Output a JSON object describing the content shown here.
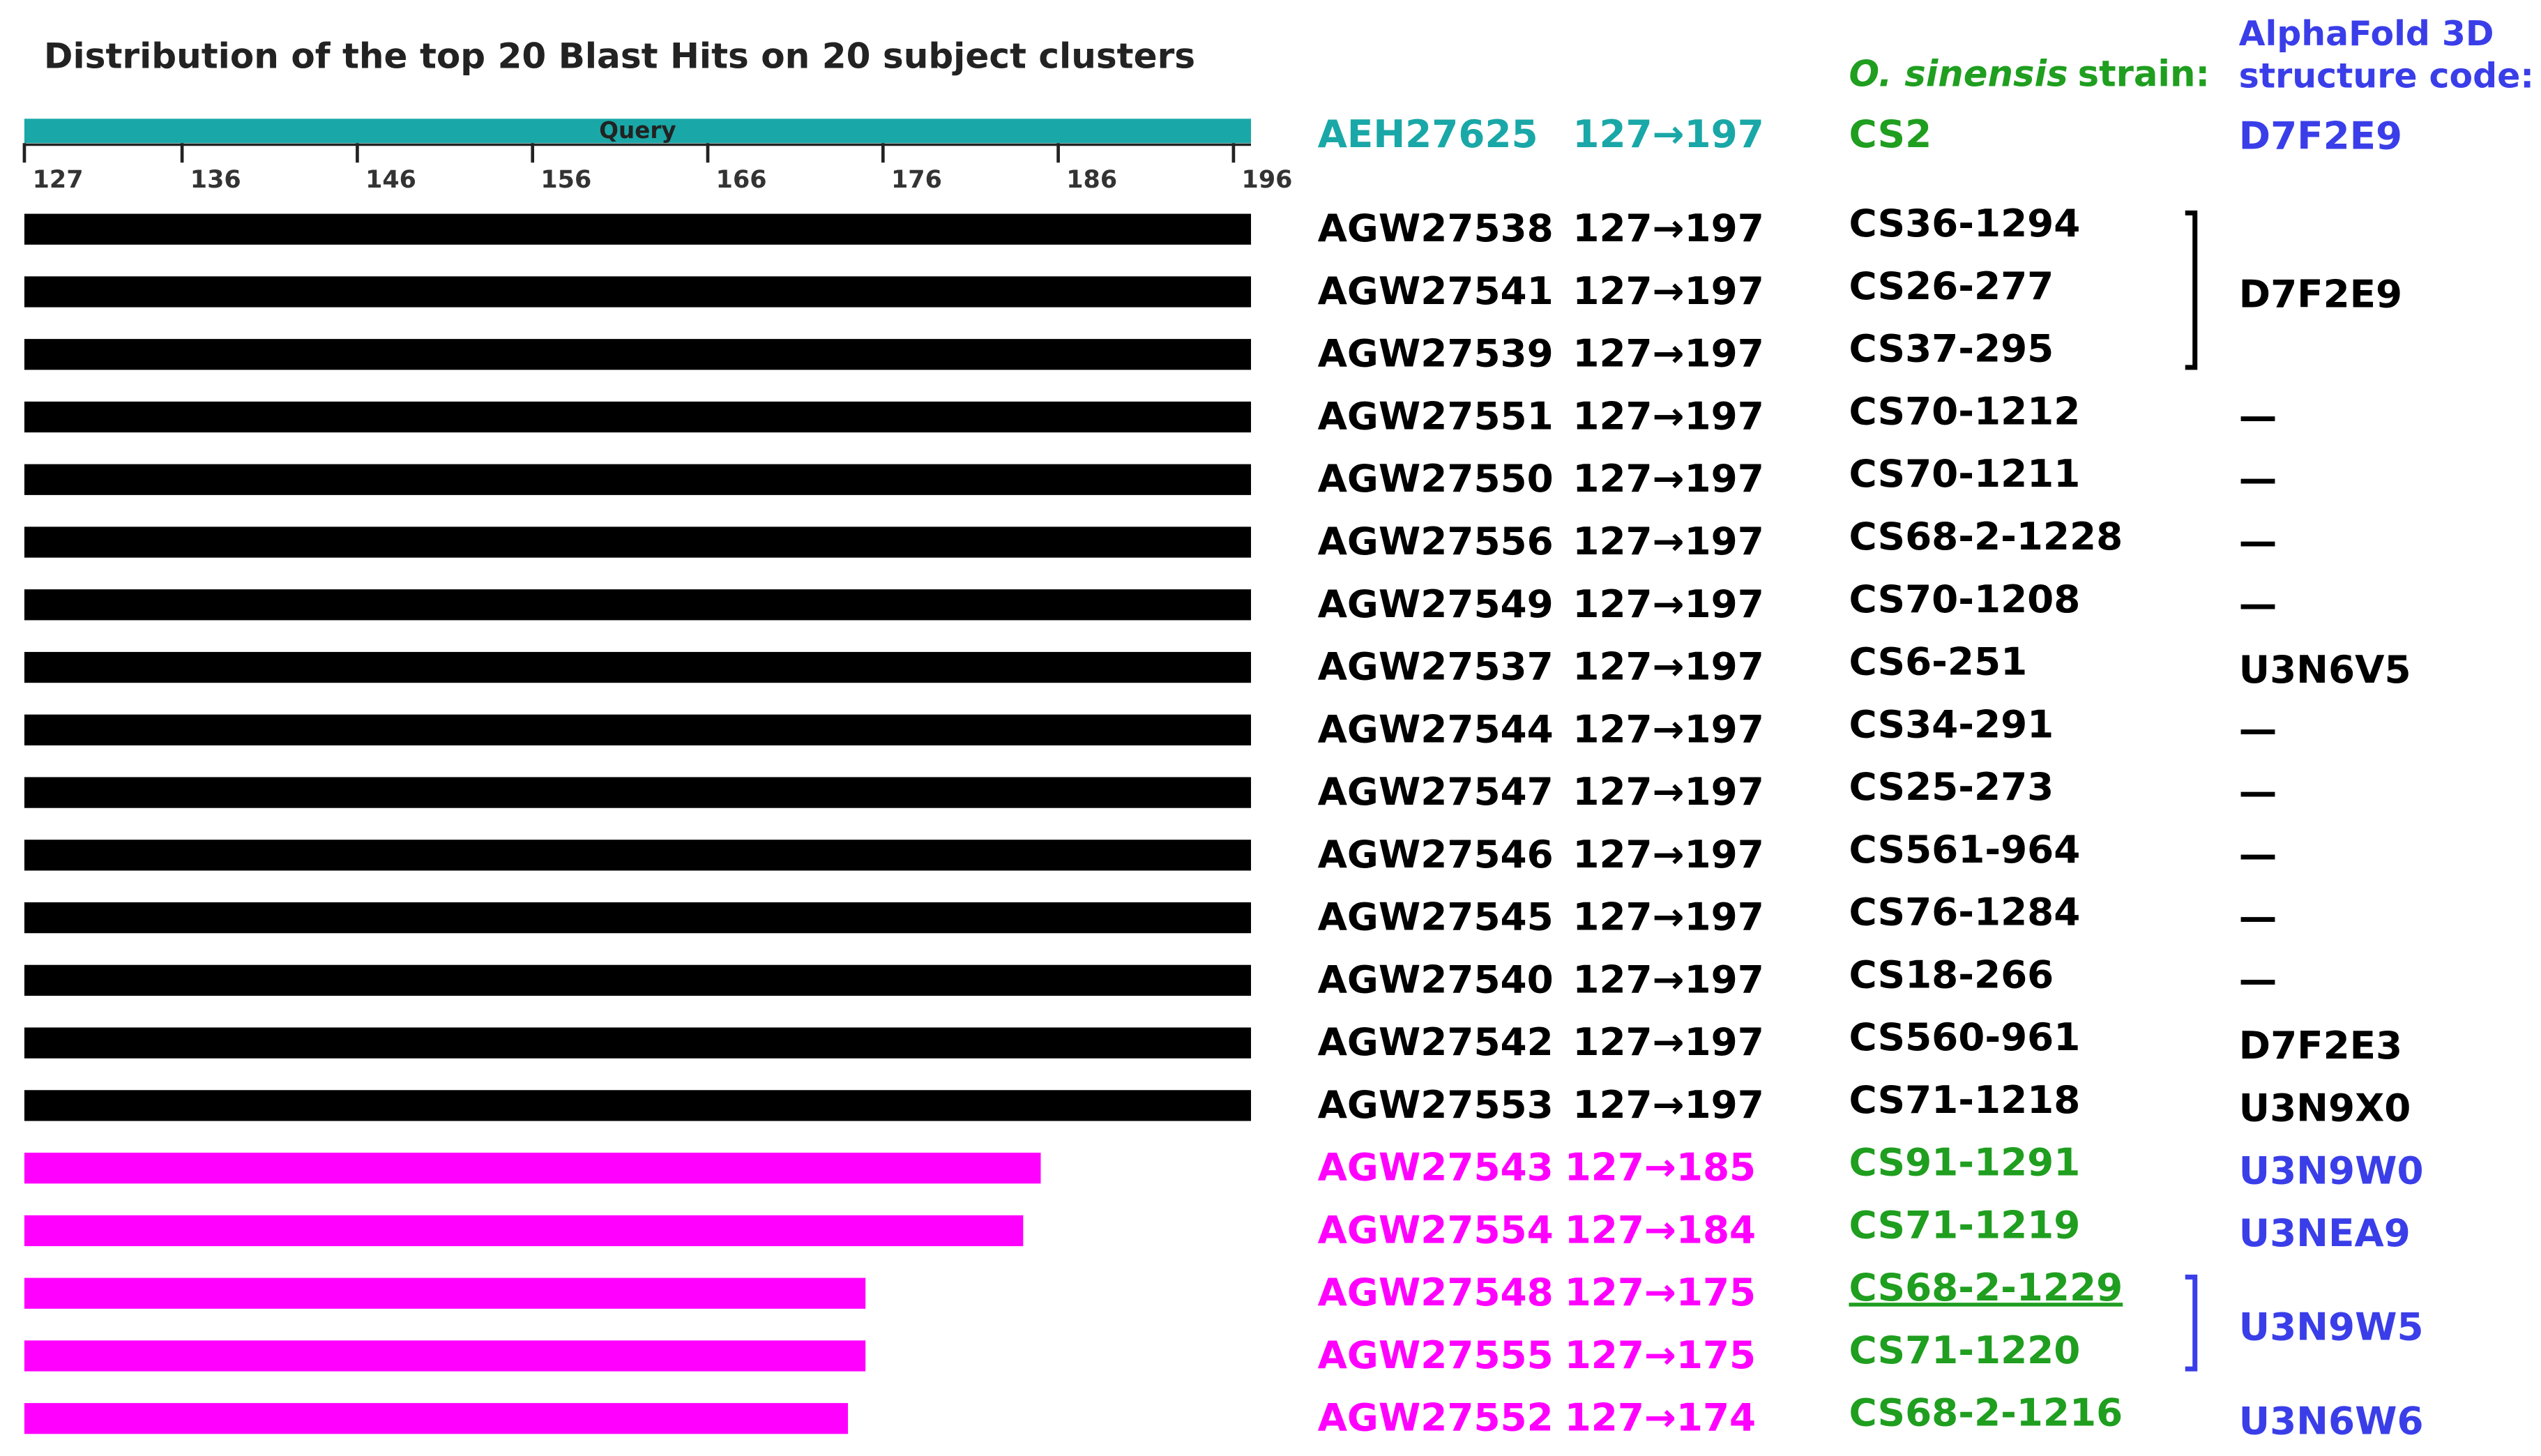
{
  "chart_data": {
    "type": "range-bar",
    "title": "Distribution of the top 20 Blast Hits on 20 subject clusters",
    "strain_header_italic": "O. sinensis",
    "strain_header": "strain:",
    "code_header": [
      "AlphaFold 3D",
      "structure code:"
    ],
    "xlim": [
      127,
      197
    ],
    "xticks": [
      127,
      136,
      146,
      156,
      166,
      176,
      186,
      196
    ],
    "query": {
      "bar_label": "Query",
      "accession": "AEH27625",
      "start": 127,
      "end": 197,
      "range": "127→197",
      "strain": "CS2",
      "code": "D7F2E9",
      "color": "#1aa7a7",
      "strain_color": "#1f9e1f",
      "code_color": "#3a3ee8"
    },
    "hits": [
      {
        "accession": "AGW27538",
        "start": 127,
        "end": 197,
        "range": "127→197",
        "strain": "CS36-1294",
        "code": "D7F2E9",
        "color": "#000000",
        "strain_color": "#000000",
        "code_color": "#000000"
      },
      {
        "accession": "AGW27541",
        "start": 127,
        "end": 197,
        "range": "127→197",
        "strain": "CS26-277",
        "code": null,
        "color": "#000000",
        "strain_color": "#000000",
        "code_color": "#000000"
      },
      {
        "accession": "AGW27539",
        "start": 127,
        "end": 197,
        "range": "127→197",
        "strain": "CS37-295",
        "code": null,
        "color": "#000000",
        "strain_color": "#000000",
        "code_color": "#000000"
      },
      {
        "accession": "AGW27551",
        "start": 127,
        "end": 197,
        "range": "127→197",
        "strain": "CS70-1212",
        "code": "—",
        "color": "#000000",
        "strain_color": "#000000",
        "code_color": "#000000"
      },
      {
        "accession": "AGW27550",
        "start": 127,
        "end": 197,
        "range": "127→197",
        "strain": "CS70-1211",
        "code": "—",
        "color": "#000000",
        "strain_color": "#000000",
        "code_color": "#000000"
      },
      {
        "accession": "AGW27556",
        "start": 127,
        "end": 197,
        "range": "127→197",
        "strain": "CS68-2-1228",
        "code": "—",
        "color": "#000000",
        "strain_color": "#000000",
        "code_color": "#000000"
      },
      {
        "accession": "AGW27549",
        "start": 127,
        "end": 197,
        "range": "127→197",
        "strain": "CS70-1208",
        "code": "—",
        "color": "#000000",
        "strain_color": "#000000",
        "code_color": "#000000"
      },
      {
        "accession": "AGW27537",
        "start": 127,
        "end": 197,
        "range": "127→197",
        "strain": "CS6-251",
        "code": "U3N6V5",
        "color": "#000000",
        "strain_color": "#000000",
        "code_color": "#000000"
      },
      {
        "accession": "AGW27544",
        "start": 127,
        "end": 197,
        "range": "127→197",
        "strain": "CS34-291",
        "code": "—",
        "color": "#000000",
        "strain_color": "#000000",
        "code_color": "#000000"
      },
      {
        "accession": "AGW27547",
        "start": 127,
        "end": 197,
        "range": "127→197",
        "strain": "CS25-273",
        "code": "—",
        "color": "#000000",
        "strain_color": "#000000",
        "code_color": "#000000"
      },
      {
        "accession": "AGW27546",
        "start": 127,
        "end": 197,
        "range": "127→197",
        "strain": "CS561-964",
        "code": "—",
        "color": "#000000",
        "strain_color": "#000000",
        "code_color": "#000000"
      },
      {
        "accession": "AGW27545",
        "start": 127,
        "end": 197,
        "range": "127→197",
        "strain": "CS76-1284",
        "code": "—",
        "color": "#000000",
        "strain_color": "#000000",
        "code_color": "#000000"
      },
      {
        "accession": "AGW27540",
        "start": 127,
        "end": 197,
        "range": "127→197",
        "strain": "CS18-266",
        "code": "—",
        "color": "#000000",
        "strain_color": "#000000",
        "code_color": "#000000"
      },
      {
        "accession": "AGW27542",
        "start": 127,
        "end": 197,
        "range": "127→197",
        "strain": "CS560-961",
        "code": "D7F2E3",
        "color": "#000000",
        "strain_color": "#000000",
        "code_color": "#000000"
      },
      {
        "accession": "AGW27553",
        "start": 127,
        "end": 197,
        "range": "127→197",
        "strain": "CS71-1218",
        "code": "U3N9X0",
        "color": "#000000",
        "strain_color": "#000000",
        "code_color": "#000000"
      },
      {
        "accession": "AGW27543",
        "start": 127,
        "end": 185,
        "range": "127→185",
        "strain": "CS91-1291",
        "code": "U3N9W0",
        "color": "#ff00ff",
        "strain_color": "#1f9e1f",
        "code_color": "#3a3ee8"
      },
      {
        "accession": "AGW27554",
        "start": 127,
        "end": 184,
        "range": "127→184",
        "strain": "CS71-1219",
        "code": "U3NEA9",
        "color": "#ff00ff",
        "strain_color": "#1f9e1f",
        "code_color": "#3a3ee8"
      },
      {
        "accession": "AGW27548",
        "start": 127,
        "end": 175,
        "range": "127→175",
        "strain": "CS68-2-1229",
        "strain_underline": true,
        "code": "U3N9W5",
        "color": "#ff00ff",
        "strain_color": "#1f9e1f",
        "code_color": "#3a3ee8"
      },
      {
        "accession": "AGW27555",
        "start": 127,
        "end": 175,
        "range": "127→175",
        "strain": "CS71-1220",
        "code": null,
        "color": "#ff00ff",
        "strain_color": "#1f9e1f",
        "code_color": "#3a3ee8"
      },
      {
        "accession": "AGW27552",
        "start": 127,
        "end": 174,
        "range": "127→174",
        "strain": "CS68-2-1216",
        "code": "U3N6W6",
        "color": "#ff00ff",
        "strain_color": "#1f9e1f",
        "code_color": "#3a3ee8"
      }
    ]
  }
}
